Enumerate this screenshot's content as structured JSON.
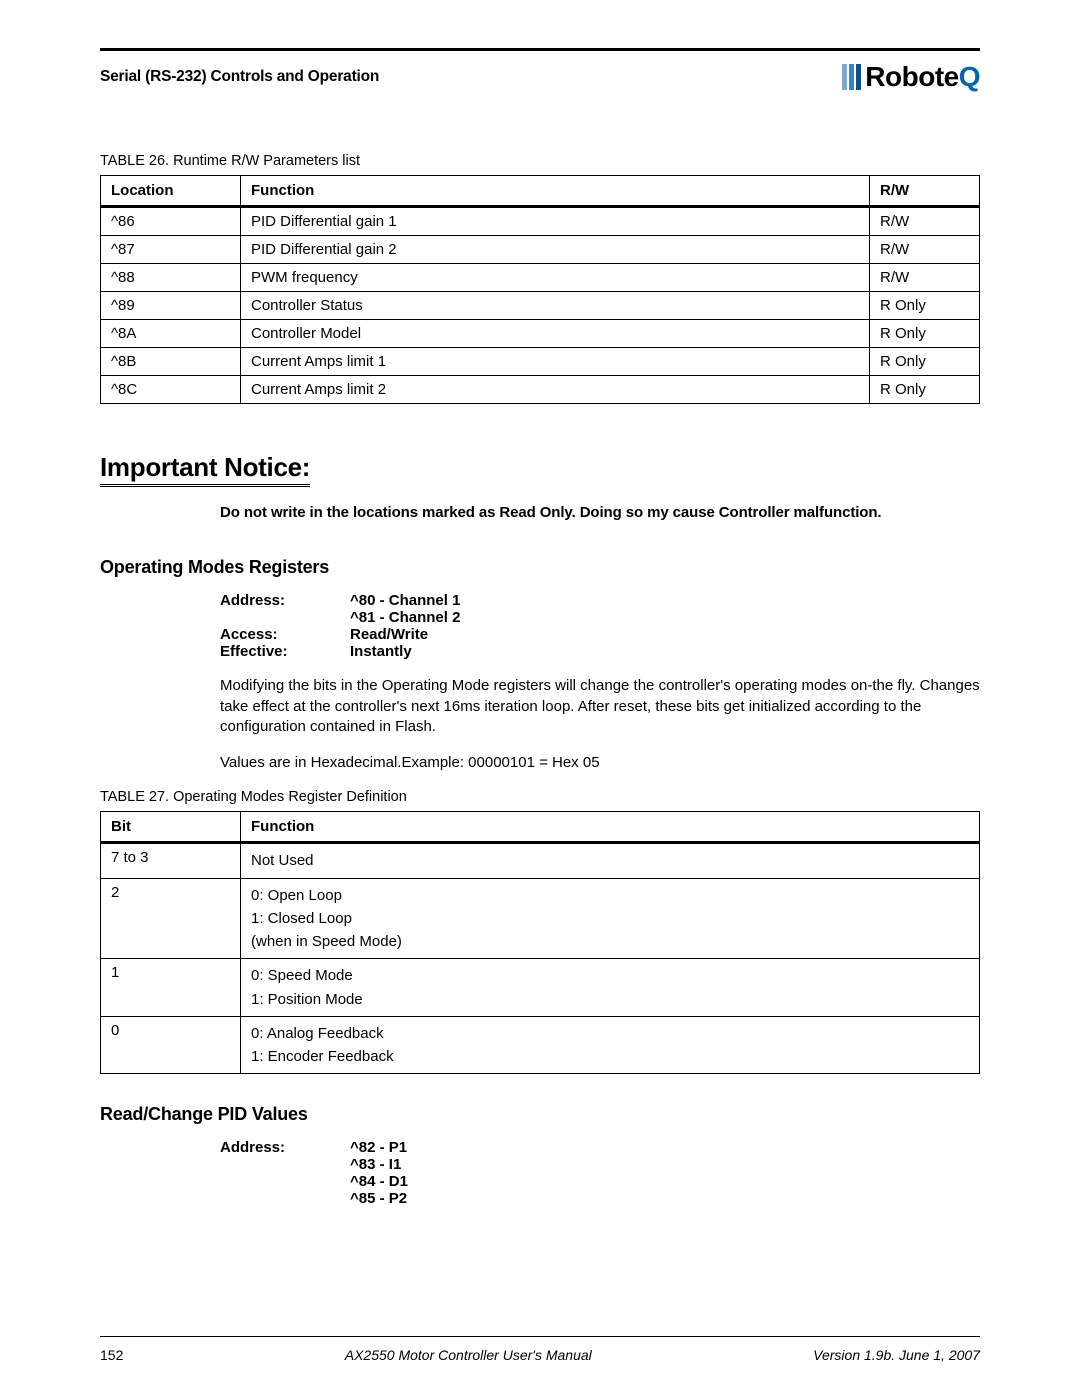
{
  "colors": {
    "logo_bar1": "#7aa8d4",
    "logo_bar2": "#3b82c4",
    "logo_bar3": "#0b4f8a",
    "logo_q": "#0066b3",
    "text": "#000000",
    "rule": "#000000",
    "background": "#ffffff"
  },
  "header": {
    "title": "Serial (RS-232) Controls and Operation",
    "logo_text_prefix": "Robote",
    "logo_text_suffix": "Q"
  },
  "table26": {
    "caption": "TABLE 26. Runtime R/W Parameters list",
    "columns": [
      "Location",
      "Function",
      "R/W"
    ],
    "rows": [
      [
        "^86",
        "PID Differential gain 1",
        "R/W"
      ],
      [
        "^87",
        "PID Differential gain 2",
        "R/W"
      ],
      [
        "^88",
        "PWM frequency",
        "R/W"
      ],
      [
        "^89",
        "Controller Status",
        "R Only"
      ],
      [
        "^8A",
        "Controller Model",
        "R Only"
      ],
      [
        "^8B",
        "Current Amps limit 1",
        "R Only"
      ],
      [
        "^8C",
        "Current Amps limit 2",
        "R Only"
      ]
    ]
  },
  "notice": {
    "heading": "Important Notice:",
    "body": "Do not write in the locations marked as Read Only. Doing so my cause Controller malfunction."
  },
  "opmodes": {
    "heading": "Operating Modes Registers",
    "kv": {
      "address_label": "Address:",
      "address_l1": "^80 - Channel 1",
      "address_l2": "^81 - Channel 2",
      "access_label": "Access:",
      "access_val": "Read/Write",
      "effective_label": "Effective:",
      "effective_val": "Instantly"
    },
    "para1": "Modifying the bits in the Operating Mode registers will change the controller's operating modes on-the fly. Changes take effect at the controller's next 16ms iteration loop. After reset, these bits get initialized according to the configuration contained in Flash.",
    "para2": "Values are in Hexadecimal.Example: 00000101 = Hex 05"
  },
  "table27": {
    "caption": "TABLE 27. Operating Modes Register Definition",
    "columns": [
      "Bit",
      "Function"
    ],
    "rows": [
      {
        "bit": "7 to 3",
        "lines": [
          "Not Used"
        ]
      },
      {
        "bit": "2",
        "lines": [
          "0: Open Loop",
          "1: Closed Loop",
          "(when in Speed Mode)"
        ]
      },
      {
        "bit": "1",
        "lines": [
          "0: Speed Mode",
          "1: Position Mode"
        ]
      },
      {
        "bit": "0",
        "lines": [
          "0: Analog Feedback",
          "1: Encoder Feedback"
        ]
      }
    ]
  },
  "pid": {
    "heading": "Read/Change PID Values",
    "address_label": "Address:",
    "lines": [
      "^82 - P1",
      "^83 - I1",
      "^84 - D1",
      "^85 - P2"
    ]
  },
  "footer": {
    "page": "152",
    "mid": "AX2550 Motor Controller User's Manual",
    "right": "Version 1.9b. June 1, 2007"
  }
}
